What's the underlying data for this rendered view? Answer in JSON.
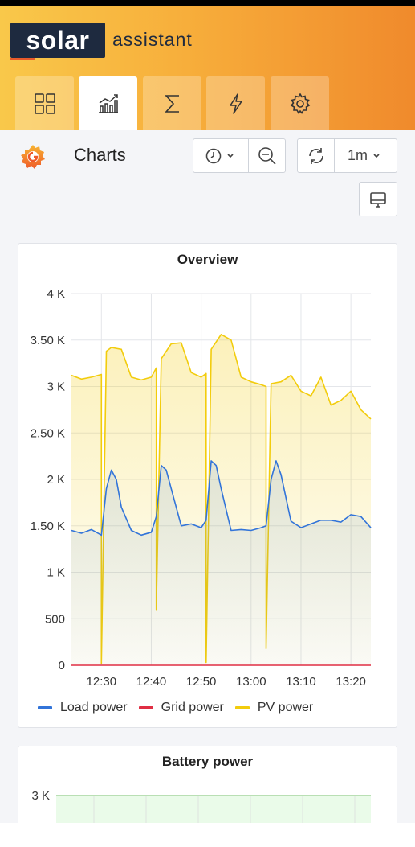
{
  "brand": {
    "logo_word": "solar",
    "logo_suffix": "assistant"
  },
  "tabs": [
    {
      "name": "dashboard",
      "icon": "grid-icon"
    },
    {
      "name": "charts",
      "icon": "chart-icon",
      "active": true
    },
    {
      "name": "totals",
      "icon": "sigma-icon"
    },
    {
      "name": "power",
      "icon": "bolt-icon"
    },
    {
      "name": "settings",
      "icon": "gear-icon"
    }
  ],
  "page": {
    "title": "Charts"
  },
  "toolbar": {
    "refresh_interval": "1m"
  },
  "overview": {
    "title": "Overview",
    "legend": [
      "Load power",
      "Grid power",
      "PV power"
    ]
  },
  "battery": {
    "title": "Battery power",
    "ytick": "3 K"
  },
  "colors": {
    "load": "#3274d9",
    "grid": "#e02f44",
    "pv": "#f2cc0c",
    "battery": "#73bf69"
  },
  "chart_data": {
    "type": "area",
    "title": "Overview",
    "xlabel": "",
    "ylabel": "",
    "ylim": [
      0,
      4000
    ],
    "y_ticks": [
      0,
      500,
      1000,
      1500,
      2000,
      2500,
      3000,
      3500,
      4000
    ],
    "y_tick_labels": [
      "0",
      "500",
      "1 K",
      "1.50 K",
      "2 K",
      "2.50 K",
      "3 K",
      "3.50 K",
      "4 K"
    ],
    "x_tick_labels": [
      "12:30",
      "12:40",
      "12:50",
      "13:00",
      "13:10",
      "13:20"
    ],
    "x_minutes_start": "12:24",
    "x_minutes_end": "13:24",
    "grid": true,
    "legend_position": "bottom",
    "series": [
      {
        "name": "PV power",
        "color": "#f2cc0c",
        "x": [
          "12:24",
          "12:26",
          "12:28",
          "12:30",
          "12:30",
          "12:31",
          "12:32",
          "12:34",
          "12:36",
          "12:38",
          "12:40",
          "12:41",
          "12:41",
          "12:42",
          "12:44",
          "12:46",
          "12:48",
          "12:50",
          "12:51",
          "12:51",
          "12:52",
          "12:54",
          "12:56",
          "12:58",
          "13:00",
          "13:02",
          "13:03",
          "13:03",
          "13:04",
          "13:06",
          "13:08",
          "13:10",
          "13:12",
          "13:14",
          "13:16",
          "13:18",
          "13:20",
          "13:22",
          "13:24"
        ],
        "values": [
          3120,
          3080,
          3100,
          3130,
          20,
          3380,
          3420,
          3400,
          3100,
          3070,
          3100,
          3200,
          600,
          3300,
          3460,
          3470,
          3150,
          3100,
          3140,
          30,
          3400,
          3560,
          3500,
          3100,
          3050,
          3020,
          3000,
          180,
          3030,
          3050,
          3120,
          2950,
          2900,
          3100,
          2800,
          2850,
          2950,
          2750,
          2650
        ]
      },
      {
        "name": "Load power",
        "color": "#3274d9",
        "x": [
          "12:24",
          "12:26",
          "12:28",
          "12:30",
          "12:31",
          "12:32",
          "12:33",
          "12:34",
          "12:36",
          "12:38",
          "12:40",
          "12:41",
          "12:42",
          "12:43",
          "12:44",
          "12:46",
          "12:48",
          "12:50",
          "12:51",
          "12:52",
          "12:53",
          "12:54",
          "12:56",
          "12:58",
          "13:00",
          "13:02",
          "13:03",
          "13:04",
          "13:05",
          "13:06",
          "13:08",
          "13:10",
          "13:12",
          "13:14",
          "13:16",
          "13:18",
          "13:20",
          "13:22",
          "13:24"
        ],
        "values": [
          1450,
          1420,
          1460,
          1400,
          1900,
          2100,
          2000,
          1700,
          1450,
          1400,
          1430,
          1600,
          2150,
          2100,
          1900,
          1500,
          1520,
          1480,
          1560,
          2200,
          2150,
          1900,
          1450,
          1460,
          1450,
          1480,
          1500,
          2000,
          2200,
          2050,
          1550,
          1480,
          1520,
          1560,
          1560,
          1540,
          1620,
          1600,
          1480
        ]
      },
      {
        "name": "Grid power",
        "color": "#e02f44",
        "x": [
          "12:24",
          "13:24"
        ],
        "values": [
          0,
          0
        ]
      }
    ]
  }
}
